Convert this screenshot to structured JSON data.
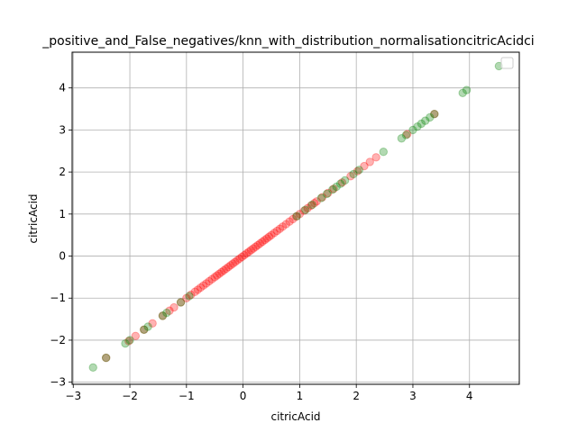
{
  "chart_data": {
    "type": "scatter",
    "title": "_positive_and_False_negatives/knn_with_distribution_normalisationcitricAcidci",
    "xlabel": "citricAcid",
    "ylabel": "citricAcid",
    "xlim": [
      -3.02,
      4.88
    ],
    "ylim": [
      -3.05,
      4.85
    ],
    "xticks": [
      -3,
      -2,
      -1,
      0,
      1,
      2,
      3,
      4
    ],
    "yticks": [
      -3,
      -2,
      -1,
      0,
      1,
      2,
      3,
      4
    ],
    "xtick_labels": [
      "−3",
      "−2",
      "−1",
      "0",
      "1",
      "2",
      "3",
      "4"
    ],
    "ytick_labels": [
      "−3",
      "−2",
      "−1",
      "0",
      "1",
      "2",
      "3",
      "4"
    ],
    "grid": true,
    "legend": "top-right",
    "colors": {
      "red": "#ff0000",
      "green": "#008000",
      "alpha": 0.3
    },
    "series": [
      {
        "color": "red",
        "x": [
          -2.42,
          -2.02,
          -1.9,
          -1.75,
          -1.6,
          -1.42,
          -1.3,
          -1.22,
          -1.1,
          -1.0,
          -0.92,
          -0.85,
          -0.8,
          -0.75,
          -0.7,
          -0.65,
          -0.6,
          -0.55,
          -0.5,
          -0.46,
          -0.42,
          -0.38,
          -0.34,
          -0.3,
          -0.26,
          -0.22,
          -0.18,
          -0.14,
          -0.1,
          -0.06,
          -0.02,
          0.02,
          0.06,
          0.1,
          0.14,
          0.18,
          0.22,
          0.26,
          0.3,
          0.34,
          0.38,
          0.42,
          0.46,
          0.5,
          0.55,
          0.6,
          0.65,
          0.7,
          0.76,
          0.82,
          0.88,
          0.94,
          1.0,
          1.08,
          1.14,
          1.2,
          1.26,
          1.3,
          1.4,
          1.5,
          1.6,
          1.75,
          1.9,
          2.02,
          2.14,
          2.24,
          2.35,
          2.9,
          3.38
        ],
        "y": [
          -2.42,
          -2.02,
          -1.9,
          -1.75,
          -1.6,
          -1.42,
          -1.3,
          -1.22,
          -1.1,
          -1.0,
          -0.92,
          -0.85,
          -0.8,
          -0.75,
          -0.7,
          -0.65,
          -0.6,
          -0.55,
          -0.5,
          -0.46,
          -0.42,
          -0.38,
          -0.34,
          -0.3,
          -0.26,
          -0.22,
          -0.18,
          -0.14,
          -0.1,
          -0.06,
          -0.02,
          0.02,
          0.06,
          0.1,
          0.14,
          0.18,
          0.22,
          0.26,
          0.3,
          0.34,
          0.38,
          0.42,
          0.46,
          0.5,
          0.55,
          0.6,
          0.65,
          0.7,
          0.76,
          0.82,
          0.88,
          0.94,
          1.0,
          1.08,
          1.14,
          1.2,
          1.26,
          1.3,
          1.4,
          1.5,
          1.6,
          1.75,
          1.9,
          2.02,
          2.14,
          2.24,
          2.35,
          2.9,
          3.38
        ]
      },
      {
        "color": "green",
        "x": [
          -2.65,
          -2.42,
          -2.08,
          -2.0,
          -1.75,
          -1.68,
          -1.42,
          -1.35,
          -1.1,
          -0.95,
          0.95,
          1.1,
          1.22,
          1.38,
          1.48,
          1.58,
          1.65,
          1.72,
          1.8,
          1.95,
          2.05,
          2.48,
          2.8,
          2.88,
          3.0,
          3.08,
          3.15,
          3.22,
          3.3,
          3.38,
          3.88,
          3.95,
          4.52
        ],
        "y": [
          -2.65,
          -2.42,
          -2.08,
          -2.0,
          -1.75,
          -1.68,
          -1.42,
          -1.35,
          -1.1,
          -0.95,
          0.95,
          1.1,
          1.22,
          1.38,
          1.48,
          1.58,
          1.65,
          1.72,
          1.8,
          1.95,
          2.05,
          2.48,
          2.8,
          2.88,
          3.0,
          3.08,
          3.15,
          3.22,
          3.3,
          3.38,
          3.88,
          3.95,
          4.52
        ]
      }
    ]
  }
}
